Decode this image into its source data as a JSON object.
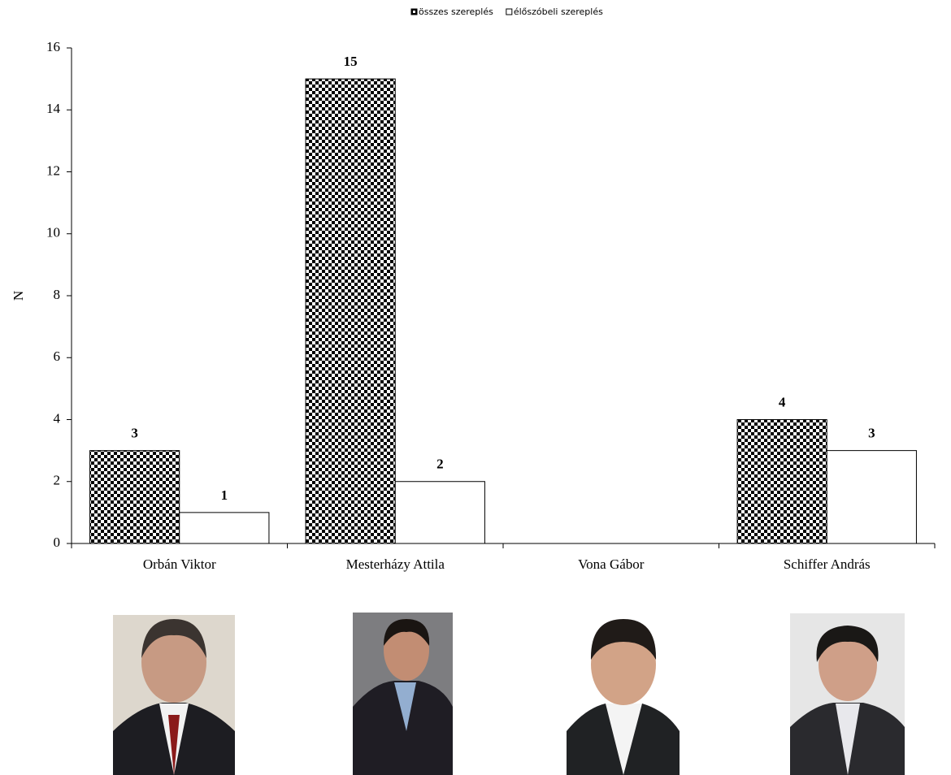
{
  "chart_data": {
    "type": "bar",
    "categories": [
      "Orbán Viktor",
      "Mesterházy Attila",
      "Vona Gábor",
      "Schiffer András"
    ],
    "series": [
      {
        "name": "összes szereplés",
        "color": "#000000",
        "pattern": "checkerboard",
        "values": [
          3,
          15,
          null,
          4
        ]
      },
      {
        "name": "élőszóbeli szereplés",
        "color": "#ffffff",
        "pattern": "none",
        "values": [
          1,
          2,
          null,
          3
        ]
      }
    ],
    "y_label": "N",
    "ylim": [
      0,
      16
    ],
    "yticks": [
      0,
      2,
      4,
      6,
      8,
      10,
      12,
      14,
      16
    ],
    "data_labels": true,
    "legend": "top"
  }
}
